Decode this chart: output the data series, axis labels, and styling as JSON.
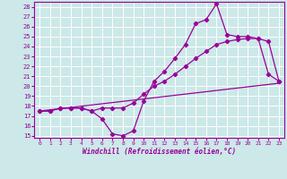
{
  "xlabel": "Windchill (Refroidissement éolien,°C)",
  "bg_color": "#cce8e8",
  "line_color": "#990099",
  "grid_color": "#aacccc",
  "xlim": [
    -0.5,
    23.5
  ],
  "ylim": [
    14.8,
    28.5
  ],
  "yticks": [
    15,
    16,
    17,
    18,
    19,
    20,
    21,
    22,
    23,
    24,
    25,
    26,
    27,
    28
  ],
  "xticks": [
    0,
    1,
    2,
    3,
    4,
    5,
    6,
    7,
    8,
    9,
    10,
    11,
    12,
    13,
    14,
    15,
    16,
    17,
    18,
    19,
    20,
    21,
    22,
    23
  ],
  "series1_x": [
    0,
    1,
    2,
    3,
    4,
    5,
    6,
    7,
    8,
    9,
    10,
    11,
    12,
    13,
    14,
    15,
    16,
    17,
    18,
    19,
    20,
    21,
    22,
    23
  ],
  "series1_y": [
    17.5,
    17.5,
    17.8,
    17.8,
    17.8,
    17.5,
    16.7,
    15.2,
    15.0,
    15.5,
    18.5,
    20.5,
    21.5,
    22.8,
    24.2,
    26.3,
    26.7,
    28.3,
    25.2,
    25.0,
    25.0,
    24.8,
    21.2,
    20.5
  ],
  "series2_x": [
    0,
    1,
    2,
    3,
    4,
    5,
    6,
    7,
    8,
    9,
    10,
    11,
    12,
    13,
    14,
    15,
    16,
    17,
    18,
    19,
    20,
    21,
    22,
    23
  ],
  "series2_y": [
    17.5,
    17.5,
    17.8,
    17.8,
    17.8,
    17.5,
    17.8,
    17.8,
    17.8,
    18.3,
    19.2,
    20.0,
    20.5,
    21.2,
    22.0,
    22.8,
    23.5,
    24.2,
    24.5,
    24.7,
    24.8,
    24.8,
    24.5,
    20.5
  ],
  "series3_x": [
    0,
    23
  ],
  "series3_y": [
    17.5,
    20.3
  ]
}
